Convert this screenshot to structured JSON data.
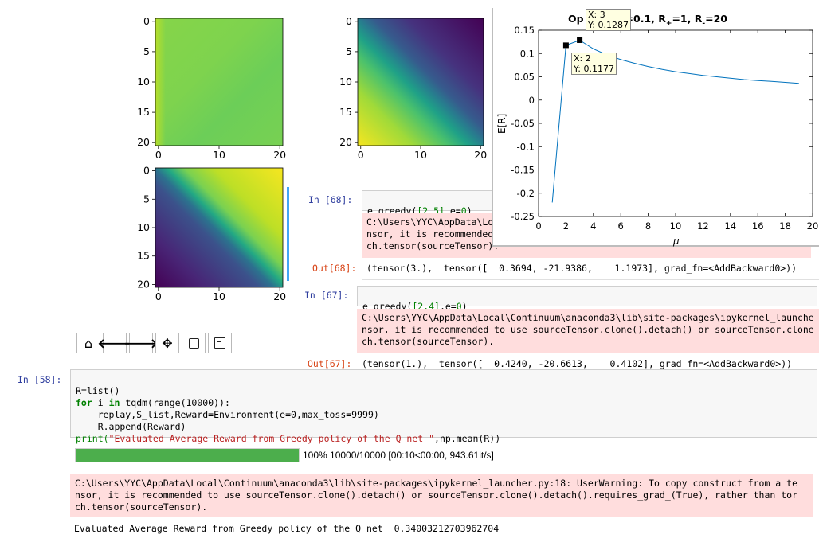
{
  "heatmaps": {
    "ticks_y": [
      "0",
      "5",
      "10",
      "15",
      "20"
    ],
    "ticks_x": [
      "0",
      "10",
      "20"
    ],
    "colors": {
      "yellow": "#f6e620",
      "green": "#7ed34e",
      "teal": "#2a9a8a",
      "blue": "#3b528b",
      "purple": "#440154"
    }
  },
  "matlab_plot": {
    "title": "Op        when f=0.1, R",
    "title_sub1": "+",
    "title_mid": "=1, R",
    "title_sub2": "-",
    "title_end": "=20",
    "ylabel": "E[R]",
    "xlabel": "μ",
    "yticks": [
      "0.15",
      "0.1",
      "0.05",
      "0",
      "-0.05",
      "-0.1",
      "-0.15",
      "-0.2",
      "-0.25"
    ],
    "xticks": [
      "0",
      "2",
      "4",
      "6",
      "8",
      "10",
      "12",
      "14",
      "16",
      "18",
      "20"
    ],
    "tooltip1": {
      "x": "X: 3",
      "y": "Y: 0.1287"
    },
    "tooltip2": {
      "x": "X: 2",
      "y": "Y: 0.1177"
    }
  },
  "chart_data": {
    "type": "line",
    "title": "Op        when f=0.1, R+=1, R-=20",
    "xlabel": "μ",
    "ylabel": "E[R]",
    "xlim": [
      0,
      20
    ],
    "ylim": [
      -0.25,
      0.15
    ],
    "grid": false,
    "x": [
      1,
      2,
      3,
      4,
      5,
      6,
      7,
      8,
      9,
      10,
      11,
      12,
      13,
      14,
      15,
      16,
      17,
      18,
      19
    ],
    "values": [
      -0.22,
      0.1177,
      0.1287,
      0.11,
      0.097,
      0.087,
      0.079,
      0.072,
      0.066,
      0.061,
      0.057,
      0.053,
      0.05,
      0.047,
      0.044,
      0.042,
      0.04,
      0.038,
      0.036
    ],
    "annotations": [
      "X: 3 Y: 0.1287",
      "X: 2 Y: 0.1177"
    ]
  },
  "toolbar": {
    "icons": [
      "home-icon",
      "back-arrow-icon",
      "forward-arrow-icon",
      "pan-icon",
      "zoom-rect-icon",
      "save-icon"
    ]
  },
  "cells": {
    "c68": {
      "in_prompt": "In  [68]:",
      "code_fn": "e_greedy(",
      "code_arg1": "[2,5]",
      "code_sep": ",e=",
      "code_arg2": "0",
      "code_close": ")",
      "warn": "C:\\Users\\YYC\\AppData\\Loc\nnsor, it is recommended\nch.tensor(sourceTensor).",
      "out_prompt": "Out[68]:",
      "out": "(tensor(3.),  tensor([  0.3694, -21.9386,    1.1973], grad_fn=<AddBackward0>))"
    },
    "c67": {
      "in_prompt": "In  [67]:",
      "code_fn": "e_greedy(",
      "code_arg1": "[2,4]",
      "code_sep": ",e=",
      "code_arg2": "0",
      "code_close": ")",
      "warn": "C:\\Users\\YYC\\AppData\\Local\\Continuum\\anaconda3\\lib\\site-packages\\ipykernel_launche\nnsor, it is recommended to use sourceTensor.clone().detach() or sourceTensor.clone\nch.tensor(sourceTensor).",
      "out_prompt": "Out[67]:",
      "out": "(tensor(1.),  tensor([  0.4240, -20.6613,    0.4102], grad_fn=<AddBackward0>))"
    },
    "c58": {
      "in_prompt": "In  [58]:",
      "line1": "R=list()",
      "line2_for": "for",
      "line2_i": " i ",
      "line2_in": "in",
      "line2_rest": " tqdm(range(10000)):",
      "line3": "    replay,S_list,Reward=Environment(e=0,max_toss=9999)",
      "line4": "    R.append(Reward)",
      "line5_fn": "print(",
      "line5_str": "\"Evaluated Average Reward from Greedy policy of the Q net \"",
      "line5_rest": ",np.mean(R))",
      "progress_text": "100% 10000/10000 [00:10<00:00, 943.61it/s]",
      "progress": 1.0,
      "warn": "C:\\Users\\YYC\\AppData\\Local\\Continuum\\anaconda3\\lib\\site-packages\\ipykernel_launcher.py:18: UserWarning: To copy construct from a te\nnsor, it is recommended to use sourceTensor.clone().detach() or sourceTensor.clone().detach().requires_grad_(True), rather than tor\nch.tensor(sourceTensor).",
      "out": "Evaluated Average Reward from Greedy policy of the Q net  0.34003212703962704"
    }
  }
}
